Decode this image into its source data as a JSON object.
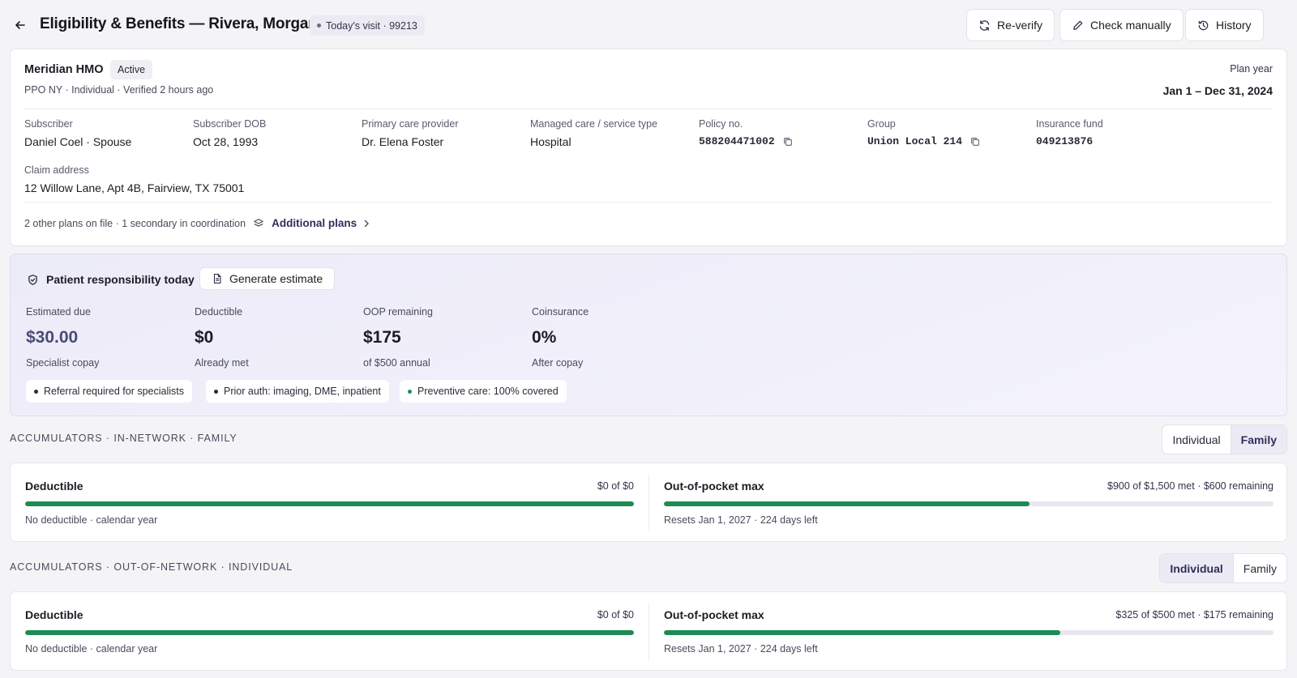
{
  "header": {
    "title": "Eligibility & Benefits — Rivera, Morgan",
    "visit_pill": "Today's visit · 99213",
    "buttons": {
      "reverify": "Re-verify",
      "check_manually": "Check manually",
      "history": "History"
    }
  },
  "plan": {
    "name": "Meridian HMO",
    "status": "Active",
    "subline": "PPO NY · Individual · Verified 2 hours ago",
    "plan_year_label": "Plan year",
    "plan_year_value": "Jan 1 – Dec 31, 2024",
    "fields": [
      {
        "label": "Subscriber",
        "value": "Daniel Coel · Spouse"
      },
      {
        "label": "Subscriber DOB",
        "value": "Oct 28, 1993"
      },
      {
        "label": "Primary care provider",
        "value": "Dr. Elena Foster"
      },
      {
        "label": "Managed care / service type",
        "value": "Hospital"
      },
      {
        "label": "Policy no.",
        "value": "588204471002"
      },
      {
        "label": "Group",
        "value": "Union Local 214"
      },
      {
        "label": "Insurance fund",
        "value": "049213876"
      }
    ],
    "claim_address_label": "Claim address",
    "claim_address": "12 Willow Lane, Apt 4B, Fairview, TX 75001",
    "other_plans_text": "2 other plans on file · 1 secondary in coordination",
    "additional_plans_link": "Additional plans"
  },
  "responsibility": {
    "title": "Patient responsibility today",
    "generate_button": "Generate estimate",
    "metrics": [
      {
        "label": "Estimated due",
        "value": "$30.00",
        "sub": "Specialist copay"
      },
      {
        "label": "Deductible",
        "value": "$0",
        "sub": "Already met"
      },
      {
        "label": "OOP remaining",
        "value": "$175",
        "sub": "of $500 annual"
      },
      {
        "label": "Coinsurance",
        "value": "0%",
        "sub": "After copay"
      }
    ],
    "chips": [
      {
        "text": "Referral required for specialists",
        "color": "#2a2a38"
      },
      {
        "text": "Prior auth: imaging, DME, inpatient",
        "color": "#2a2a38"
      },
      {
        "text": "Preventive care: 100% covered",
        "color": "#1e8a55"
      }
    ]
  },
  "accumulators": [
    {
      "label": "ACCUMULATORS · IN-NETWORK · FAMILY",
      "toggle": [
        "Individual",
        "Family"
      ],
      "selected": "Family",
      "deductible": {
        "title": "Deductible",
        "summary": "$0 of $0",
        "note": "No deductible · calendar year",
        "progress": 1.0
      },
      "oop": {
        "title": "Out-of-pocket max",
        "summary": "$900 of $1,500 met · $600 remaining",
        "note": "Resets Jan 1, 2027 · 224 days left",
        "progress": 0.6
      }
    },
    {
      "label": "ACCUMULATORS · OUT-OF-NETWORK · INDIVIDUAL",
      "toggle": [
        "Individual",
        "Family"
      ],
      "selected": "Individual",
      "deductible": {
        "title": "Deductible",
        "summary": "$0 of $0",
        "note": "No deductible · calendar year",
        "progress": 1.0
      },
      "oop": {
        "title": "Out-of-pocket max",
        "summary": "$325 of $500 met · $175 remaining",
        "note": "Resets Jan 1, 2027 · 224 days left",
        "progress": 0.65
      }
    }
  ],
  "colors": {
    "accent": "#4a4a78",
    "progress": "#1e8a55",
    "track": "#e7e7ee"
  },
  "icons": [
    "arrow-left-icon",
    "refresh-icon",
    "pencil-icon",
    "history-icon",
    "copy-icon",
    "layers-icon",
    "chevron-right-icon",
    "shield-icon",
    "document-icon"
  ]
}
